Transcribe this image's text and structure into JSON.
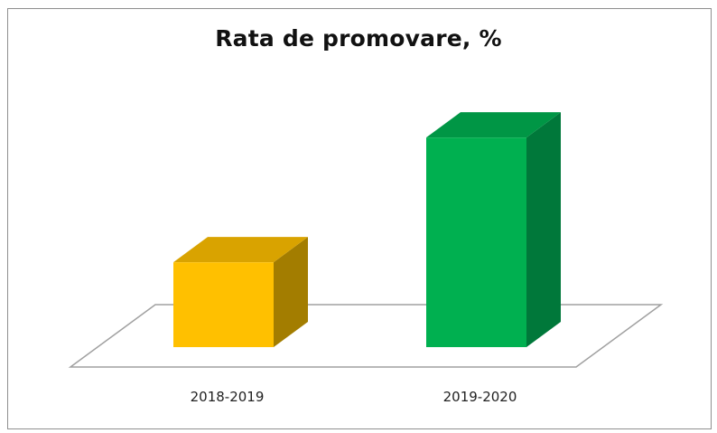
{
  "chart_data": {
    "type": "bar",
    "title": "Rata de promovare, %",
    "xlabel": "",
    "ylabel": "",
    "categories": [
      "2018-2019",
      "2019-2020"
    ],
    "values": [
      34,
      84
    ],
    "ylim": [
      0,
      100
    ],
    "bar_colors": {
      "front": [
        "#ffc000",
        "#00b050"
      ],
      "top": [
        "#d9a300",
        "#009645"
      ],
      "side": [
        "#a37d00",
        "#00783a"
      ]
    },
    "floor_color": "#ffffff",
    "floor_outline": "#a0a0a0",
    "grid": false,
    "legend": "none"
  }
}
